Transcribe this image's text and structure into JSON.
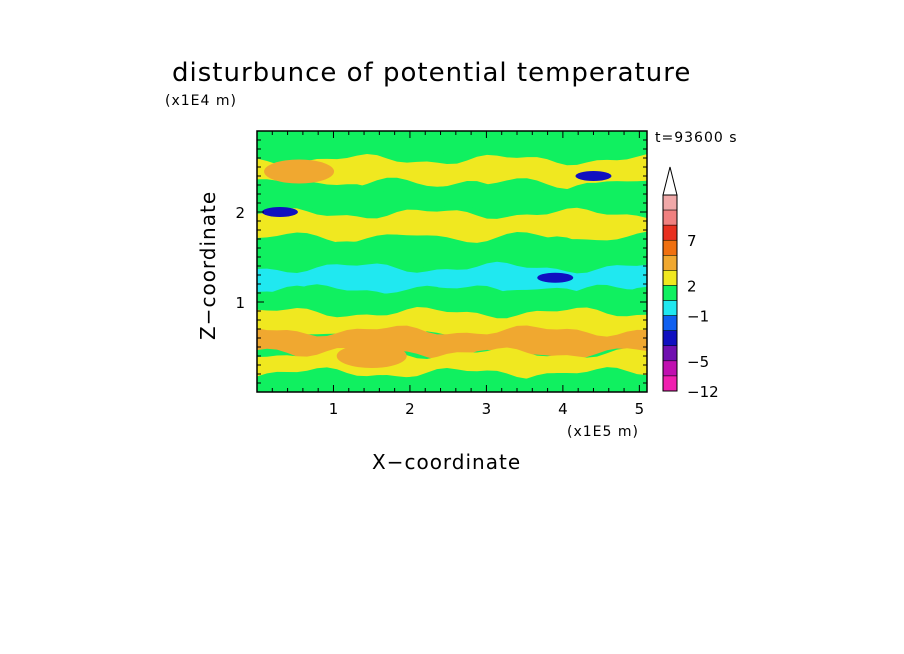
{
  "chart_data": {
    "type": "heatmap",
    "title": "disturbunce of potential temperature",
    "time_label": "t=93600 s",
    "xlabel": "X−coordinate",
    "ylabel": "Z−coordinate",
    "x_unit_label": "(x1E5 m)",
    "y_unit_label": "(x1E4 m)",
    "xlim": [
      0,
      5.1
    ],
    "ylim": [
      0,
      2.9
    ],
    "x_ticks": [
      "1",
      "2",
      "3",
      "4",
      "5"
    ],
    "y_ticks": [
      "1",
      "2"
    ],
    "colorbar": {
      "tick_labels": [
        "7",
        "2",
        "−1",
        "−5",
        "−12"
      ],
      "colors": [
        "#f0a8a8",
        "#f08080",
        "#e83020",
        "#f07010",
        "#f0a830",
        "#f0e820",
        "#10f060",
        "#20e8f0",
        "#1060f0",
        "#1010c0",
        "#7010b0",
        "#c010b0",
        "#f020b0"
      ],
      "extend": "max"
    },
    "rows": [
      {
        "z": 2.75,
        "value": "-1"
      },
      {
        "z": 2.45,
        "value": "2"
      },
      {
        "z": 2.15,
        "value": "-1"
      },
      {
        "z": 1.85,
        "value": "2"
      },
      {
        "z": 1.55,
        "value": "-1"
      },
      {
        "z": 1.25,
        "value": "-2"
      },
      {
        "z": 1.0,
        "value": "-1"
      },
      {
        "z": 0.75,
        "value": "2"
      },
      {
        "z": 0.55,
        "value": "3"
      },
      {
        "z": 0.3,
        "value": "2"
      },
      {
        "z": 0.08,
        "value": "-1"
      }
    ],
    "features": [
      {
        "x": 3.9,
        "z": 1.27,
        "value": -5
      },
      {
        "x": 0.3,
        "z": 2.0,
        "value": -5
      },
      {
        "x": 4.4,
        "z": 2.4,
        "value": -5
      },
      {
        "x": 0.55,
        "z": 2.45,
        "value": 3
      },
      {
        "x": 1.5,
        "z": 0.4,
        "value": 3
      }
    ]
  }
}
